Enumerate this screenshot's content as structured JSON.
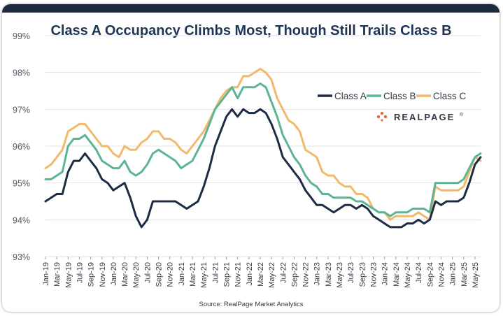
{
  "chart_data": {
    "type": "line",
    "title": "Class A Occupancy Climbs Most, Though Still Trails Class B",
    "source": "Source: RealPage Market Analytics",
    "brand": "REALPAGE",
    "brand_mark": "®",
    "ylim": [
      93,
      99
    ],
    "yticks": [
      93,
      94,
      95,
      96,
      97,
      98,
      99
    ],
    "ytick_labels": [
      "93%",
      "94%",
      "95%",
      "96%",
      "97%",
      "98%",
      "99%"
    ],
    "xtick_labels": [
      "Jan-19",
      "Mar-19",
      "May-19",
      "Jul-19",
      "Sep-19",
      "Nov-19",
      "Jan-20",
      "Mar-20",
      "May-20",
      "Jul-20",
      "Sep-20",
      "Nov-20",
      "Jan-21",
      "Mar-21",
      "May-21",
      "Jul-21",
      "Sep-21",
      "Nov-21",
      "Jan-22",
      "Mar-22",
      "May-22",
      "Jul-22",
      "Sep-22",
      "Nov-22",
      "Jan-23",
      "Mar-23",
      "May-23",
      "Jul-23",
      "Sep-23",
      "Nov-23",
      "Jan-24",
      "Mar-24",
      "May-24",
      "Jul-24",
      "Sep-24",
      "Nov-24",
      "Jan-25",
      "Mar-25",
      "May-25"
    ],
    "grid": true,
    "legend_position": "top-right",
    "series": [
      {
        "name": "Class A",
        "color": "#1d2b45",
        "values": [
          94.5,
          94.6,
          94.7,
          94.7,
          95.3,
          95.6,
          95.6,
          95.8,
          95.6,
          95.4,
          95.1,
          95.0,
          94.8,
          94.9,
          95.0,
          94.6,
          94.1,
          93.8,
          94.0,
          94.5,
          94.5,
          94.5,
          94.5,
          94.5,
          94.4,
          94.3,
          94.4,
          94.5,
          94.9,
          95.4,
          96.0,
          96.4,
          96.8,
          97.0,
          96.8,
          97.0,
          96.9,
          96.9,
          97.0,
          96.9,
          96.6,
          96.2,
          95.7,
          95.5,
          95.3,
          95.1,
          94.8,
          94.6,
          94.4,
          94.4,
          94.3,
          94.2,
          94.3,
          94.4,
          94.4,
          94.3,
          94.4,
          94.3,
          94.1,
          94.0,
          93.9,
          93.8,
          93.8,
          93.8,
          93.9,
          93.9,
          94.0,
          93.9,
          94.0,
          94.5,
          94.4,
          94.5,
          94.5,
          94.5,
          94.6,
          95.0,
          95.5,
          95.7
        ]
      },
      {
        "name": "Class B",
        "color": "#5cb494",
        "values": [
          95.1,
          95.1,
          95.2,
          95.3,
          96.0,
          96.2,
          96.2,
          96.3,
          96.1,
          95.9,
          95.6,
          95.5,
          95.4,
          95.4,
          95.6,
          95.3,
          95.2,
          95.3,
          95.5,
          95.8,
          95.9,
          95.8,
          95.7,
          95.6,
          95.4,
          95.5,
          95.6,
          95.9,
          96.2,
          96.6,
          97.0,
          97.2,
          97.4,
          97.6,
          97.3,
          97.6,
          97.6,
          97.6,
          97.7,
          97.6,
          97.2,
          96.8,
          96.3,
          96.0,
          95.7,
          95.5,
          95.2,
          95.0,
          94.9,
          94.7,
          94.7,
          94.6,
          94.6,
          94.6,
          94.6,
          94.5,
          94.5,
          94.4,
          94.3,
          94.2,
          94.2,
          94.1,
          94.2,
          94.2,
          94.2,
          94.3,
          94.3,
          94.3,
          94.2,
          95.0,
          95.0,
          95.0,
          95.0,
          95.0,
          95.1,
          95.4,
          95.7,
          95.8
        ]
      },
      {
        "name": "Class C",
        "color": "#f2b96a",
        "values": [
          95.4,
          95.5,
          95.7,
          95.9,
          96.4,
          96.5,
          96.6,
          96.6,
          96.4,
          96.2,
          96.0,
          96.0,
          95.8,
          95.7,
          96.0,
          95.9,
          95.9,
          96.1,
          96.2,
          96.4,
          96.4,
          96.2,
          96.2,
          96.1,
          95.9,
          95.8,
          96.0,
          96.2,
          96.4,
          96.7,
          97.0,
          97.3,
          97.5,
          97.6,
          97.6,
          97.9,
          97.9,
          98.0,
          98.1,
          98.0,
          97.8,
          97.3,
          97.0,
          96.7,
          96.6,
          96.4,
          95.9,
          95.8,
          95.7,
          95.3,
          95.2,
          95.2,
          95.0,
          94.9,
          94.9,
          94.7,
          94.7,
          94.6,
          94.3,
          94.2,
          94.2,
          94.0,
          94.1,
          94.1,
          94.1,
          94.1,
          94.2,
          94.1,
          94.0,
          94.9,
          94.8,
          94.8,
          94.8,
          94.8,
          94.9,
          95.3,
          95.7,
          95.6
        ]
      }
    ]
  }
}
